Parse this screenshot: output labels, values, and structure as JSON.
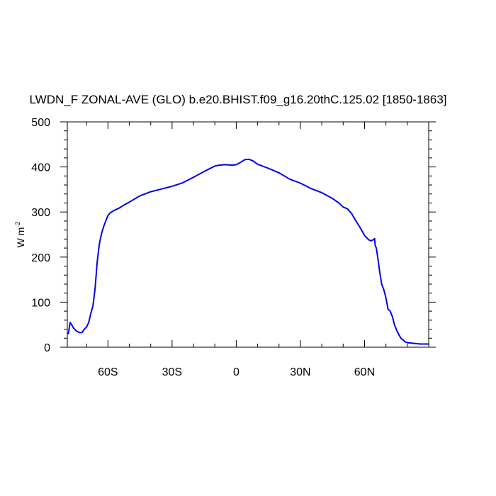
{
  "chart_data": {
    "type": "line",
    "title": "LWDN_F ZONAL-AVE (GLO) b.e20.BHIST.f09_g16.20thC.125.02 [1850-1863]",
    "ylabel": "W m",
    "ylabel_exponent": "-2",
    "xlim": [
      -79,
      90
    ],
    "ylim": [
      0,
      500
    ],
    "x_ticks": [
      {
        "value": -60,
        "label": "60S"
      },
      {
        "value": -30,
        "label": "30S"
      },
      {
        "value": 0,
        "label": "0"
      },
      {
        "value": 30,
        "label": "30N"
      },
      {
        "value": 60,
        "label": "60N"
      }
    ],
    "y_ticks": [
      {
        "value": 0,
        "label": "0"
      },
      {
        "value": 100,
        "label": "100"
      },
      {
        "value": 200,
        "label": "200"
      },
      {
        "value": 300,
        "label": "300"
      },
      {
        "value": 400,
        "label": "400"
      },
      {
        "value": 500,
        "label": "500"
      }
    ],
    "grid": false,
    "line_color": "#0000ee",
    "series": [
      {
        "x": [
          -78.5,
          -77.7,
          -77.0,
          -76.0,
          -75.0,
          -74.0,
          -73.0,
          -72.0,
          -71.0,
          -70.0,
          -69.0,
          -68.0,
          -67.0,
          -66.0,
          -65.0,
          -64.0,
          -63.0,
          -62.0,
          -61.0,
          -60.0,
          -59.0,
          -58.0,
          -57.0,
          -56.0,
          -55.0,
          -53.0,
          -50.0,
          -45.0,
          -40.0,
          -35.0,
          -30.0,
          -25.0,
          -20.0,
          -15.0,
          -10.0,
          -8.0,
          -5.0,
          -2.0,
          0.0,
          2.0,
          4.0,
          6.0,
          8.0,
          10.0,
          15.0,
          20.0,
          25.0,
          30.0,
          35.0,
          40.0,
          43.0,
          45.0,
          48.0,
          50.0,
          52.0,
          54.0,
          56.0,
          58.0,
          60.0,
          62.0,
          63.0,
          64.0,
          64.7,
          65.0,
          65.5,
          66.0,
          67.0,
          68.0,
          69.0,
          70.0,
          71.0,
          72.0,
          73.0,
          74.0,
          75.0,
          76.0,
          77.0,
          78.0,
          79.0,
          80.0,
          82.0,
          84.0,
          86.0,
          88.0,
          90.0
        ],
        "values": [
          30,
          55,
          50,
          42,
          37,
          34,
          32,
          33,
          40,
          45,
          55,
          75,
          92,
          130,
          190,
          230,
          252,
          268,
          280,
          292,
          298,
          301,
          304,
          306,
          308,
          314,
          322,
          336,
          345,
          351,
          357,
          365,
          377,
          390,
          402,
          404,
          405,
          404,
          405,
          410,
          416,
          417,
          413,
          406,
          397,
          387,
          373,
          364,
          352,
          343,
          335,
          330,
          320,
          311,
          307,
          296,
          280,
          265,
          248,
          238,
          236,
          238,
          241,
          225,
          220,
          205,
          170,
          140,
          128,
          110,
          84,
          80,
          68,
          50,
          38,
          28,
          20,
          16,
          12,
          10,
          9,
          8,
          7,
          7,
          7
        ]
      }
    ]
  }
}
